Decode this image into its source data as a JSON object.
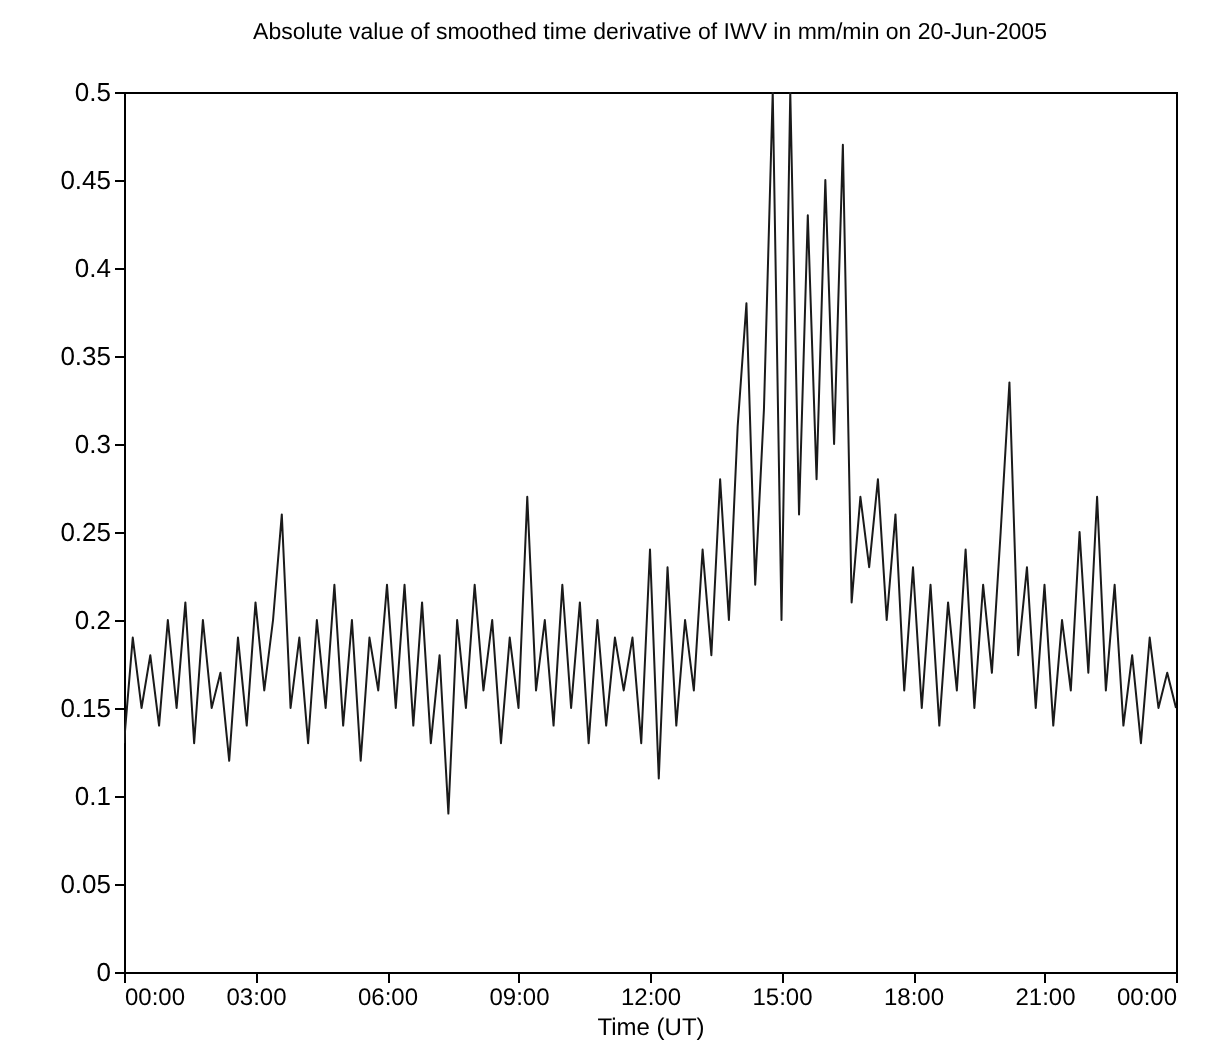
{
  "chart_data": {
    "type": "line",
    "title": "Absolute value of smoothed time derivative of IWV in mm/min on 20-Jun-2005",
    "xlabel": "Time (UT)",
    "x": [
      0.0,
      0.2,
      0.4,
      0.6,
      0.8,
      1.0,
      1.2,
      1.4,
      1.6,
      1.8,
      2.0,
      2.2,
      2.4,
      2.6,
      2.8,
      3.0,
      3.2,
      3.4,
      3.6,
      3.8,
      4.0,
      4.2,
      4.4,
      4.6,
      4.8,
      5.0,
      5.2,
      5.4,
      5.6,
      5.8,
      6.0,
      6.2,
      6.4,
      6.6,
      6.8,
      7.0,
      7.2,
      7.4,
      7.6,
      7.8,
      8.0,
      8.2,
      8.4,
      8.6,
      8.8,
      9.0,
      9.2,
      9.4,
      9.6,
      9.8,
      10.0,
      10.2,
      10.4,
      10.6,
      10.8,
      11.0,
      11.2,
      11.4,
      11.6,
      11.8,
      12.0,
      12.2,
      12.4,
      12.6,
      12.8,
      13.0,
      13.2,
      13.4,
      13.6,
      13.8,
      14.0,
      14.2,
      14.4,
      14.6,
      14.8,
      15.0,
      15.2,
      15.4,
      15.6,
      15.8,
      16.0,
      16.2,
      16.4,
      16.6,
      16.8,
      17.0,
      17.2,
      17.4,
      17.6,
      17.8,
      18.0,
      18.2,
      18.4,
      18.6,
      18.8,
      19.0,
      19.2,
      19.4,
      19.6,
      19.8,
      20.0,
      20.2,
      20.4,
      20.6,
      20.8,
      21.0,
      21.2,
      21.4,
      21.6,
      21.8,
      22.0,
      22.2,
      22.4,
      22.6,
      22.8,
      23.0,
      23.2,
      23.4,
      23.6,
      23.8,
      24.0
    ],
    "series": [
      {
        "color": "#1a1a1a",
        "values": [
          0.13,
          0.19,
          0.15,
          0.18,
          0.14,
          0.2,
          0.15,
          0.21,
          0.13,
          0.2,
          0.15,
          0.17,
          0.12,
          0.19,
          0.14,
          0.21,
          0.16,
          0.2,
          0.26,
          0.15,
          0.19,
          0.13,
          0.2,
          0.15,
          0.22,
          0.14,
          0.2,
          0.12,
          0.19,
          0.16,
          0.22,
          0.15,
          0.22,
          0.14,
          0.21,
          0.13,
          0.18,
          0.09,
          0.2,
          0.15,
          0.22,
          0.16,
          0.2,
          0.13,
          0.19,
          0.15,
          0.27,
          0.16,
          0.2,
          0.14,
          0.22,
          0.15,
          0.21,
          0.13,
          0.2,
          0.14,
          0.19,
          0.16,
          0.19,
          0.13,
          0.24,
          0.11,
          0.23,
          0.14,
          0.2,
          0.16,
          0.24,
          0.18,
          0.28,
          0.2,
          0.31,
          0.38,
          0.22,
          0.32,
          0.5,
          0.2,
          0.5,
          0.26,
          0.43,
          0.28,
          0.45,
          0.3,
          0.47,
          0.21,
          0.27,
          0.23,
          0.28,
          0.2,
          0.26,
          0.16,
          0.23,
          0.15,
          0.22,
          0.14,
          0.21,
          0.16,
          0.24,
          0.15,
          0.22,
          0.17,
          0.25,
          0.335,
          0.18,
          0.23,
          0.15,
          0.22,
          0.14,
          0.2,
          0.16,
          0.25,
          0.17,
          0.27,
          0.16,
          0.22,
          0.14,
          0.18,
          0.13,
          0.19,
          0.15,
          0.17,
          0.15
        ]
      }
    ],
    "xlim": [
      0,
      24
    ],
    "xticks": [
      {
        "value": 0,
        "label": "00:00"
      },
      {
        "value": 3,
        "label": "03:00"
      },
      {
        "value": 6,
        "label": "06:00"
      },
      {
        "value": 9,
        "label": "09:00"
      },
      {
        "value": 12,
        "label": "12:00"
      },
      {
        "value": 15,
        "label": "15:00"
      },
      {
        "value": 18,
        "label": "18:00"
      },
      {
        "value": 21,
        "label": "21:00"
      },
      {
        "value": 24,
        "label": "00:00"
      }
    ],
    "ylim": [
      0,
      0.5
    ],
    "yticks": [
      0,
      0.05,
      0.1,
      0.15,
      0.2,
      0.25,
      0.3,
      0.35,
      0.4,
      0.45,
      0.5
    ]
  }
}
